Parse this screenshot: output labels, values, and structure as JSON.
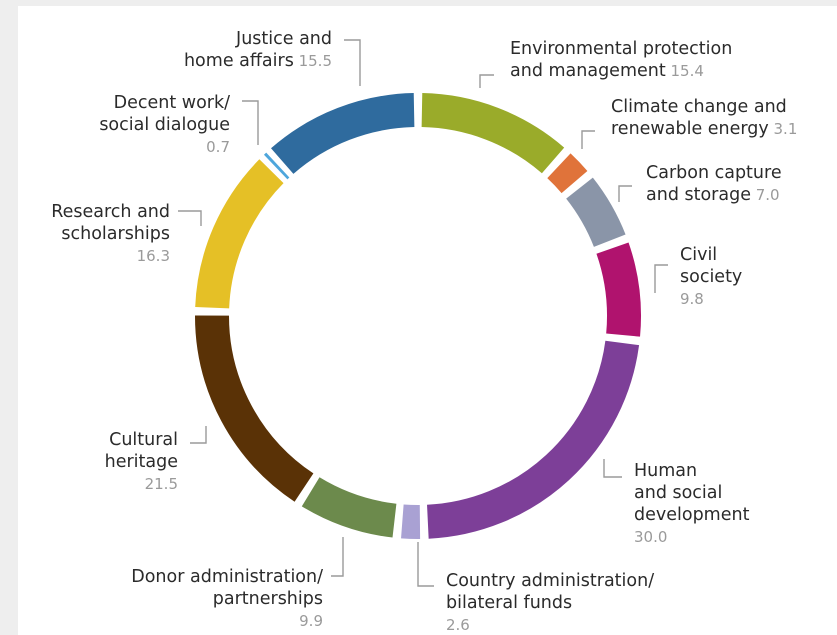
{
  "chart_data": {
    "type": "pie",
    "variant": "donut",
    "title": "",
    "categories": [
      "Environmental protection and management",
      "Climate change and renewable energy",
      "Carbon capture and storage",
      "Civil society",
      "Human and social development",
      "Country administration/ bilateral funds",
      "Donor administration/ partnerships",
      "Cultural heritage",
      "Research and scholarships",
      "Decent work/ social dialogue",
      "Justice and home affairs"
    ],
    "values": [
      15.4,
      3.1,
      7.0,
      9.8,
      30.0,
      2.6,
      9.9,
      21.5,
      16.3,
      0.7,
      15.5
    ],
    "value_labels": [
      "15.4",
      "3.1",
      "7.0",
      "9.8",
      "30.0",
      "2.6",
      "9.9",
      "21.5",
      "16.3",
      "0.7",
      "15.5"
    ],
    "label_lines": [
      [
        "Environmental protection",
        "and management"
      ],
      [
        "Climate change and",
        "renewable energy"
      ],
      [
        "Carbon capture",
        "and storage"
      ],
      [
        "Civil",
        "society"
      ],
      [
        "Human",
        "and social",
        "development"
      ],
      [
        "Country administration/",
        "bilateral funds"
      ],
      [
        "Donor administration/",
        "partnerships"
      ],
      [
        "Cultural",
        "heritage"
      ],
      [
        "Research and",
        "scholarships"
      ],
      [
        "Decent work/",
        "social dialogue"
      ],
      [
        "Justice and",
        "home affairs"
      ]
    ],
    "colors": [
      "#9aab2a",
      "#e0733a",
      "#8a95a8",
      "#b0136e",
      "#7d3f98",
      "#a9a1d3",
      "#6c8a4c",
      "#5a3206",
      "#e5c026",
      "#4ea6dc",
      "#2f6b9e"
    ],
    "legend": "none"
  }
}
